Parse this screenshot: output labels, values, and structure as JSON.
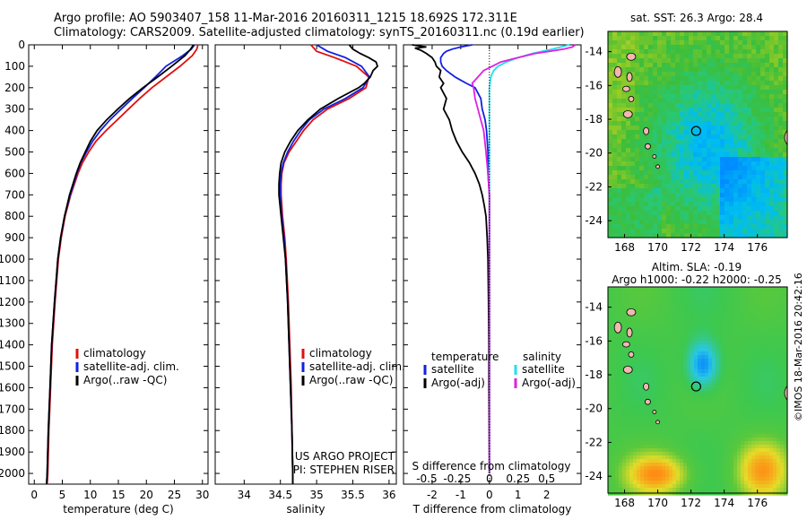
{
  "header": {
    "line1": "Argo profile: AO 5903407_158 11-Mar-2016 20160311_1215 18.692S 172.311E",
    "line2": "Climatology: CARS2009. Satellite-adjusted climatology: synTS_20160311.nc (0.19d earlier)"
  },
  "credit": "©IMOS 18-Mar-2016 20:42:16",
  "colors": {
    "climatology": "#e01010",
    "satellite": "#1020e0",
    "argo": "#000000",
    "satellite_sal": "#20e0f0",
    "argo_sal": "#e020e0",
    "land": "#f0b8b0"
  },
  "chart_data": [
    {
      "id": "temperature",
      "type": "line",
      "xlabel": "temperature (deg C)",
      "ylabel": "",
      "xlim": [
        -1,
        31
      ],
      "ylim": [
        2050,
        0
      ],
      "y_inverted": true,
      "xticks": [
        "0",
        "5",
        "10",
        "15",
        "20",
        "25",
        "30"
      ],
      "yticks": [
        "0",
        "100",
        "200",
        "300",
        "400",
        "500",
        "600",
        "700",
        "800",
        "900",
        "1000",
        "1100",
        "1200",
        "1300",
        "1400",
        "1500",
        "1600",
        "1700",
        "1800",
        "1900",
        "2000"
      ],
      "legend": [
        "climatology",
        "satellite-adj. clim.",
        "Argo(..raw -QC)"
      ],
      "series": [
        {
          "name": "climatology",
          "color": "#e01010",
          "y": [
            0,
            20,
            50,
            100,
            150,
            200,
            250,
            300,
            350,
            400,
            450,
            500,
            550,
            600,
            700,
            800,
            900,
            1000,
            1200,
            1400,
            1600,
            1800,
            2000,
            2050
          ],
          "x": [
            29.2,
            29.0,
            28.2,
            26.0,
            23.5,
            21.0,
            18.8,
            16.8,
            14.8,
            12.8,
            11.0,
            9.7,
            8.6,
            7.8,
            6.5,
            5.5,
            4.8,
            4.3,
            3.7,
            3.2,
            2.9,
            2.6,
            2.4,
            2.3
          ]
        },
        {
          "name": "satellite-adj. clim.",
          "color": "#1020e0",
          "y": [
            0,
            20,
            50,
            100,
            150,
            200,
            250,
            300,
            350,
            400,
            450,
            500,
            550,
            600,
            700,
            800,
            900,
            1000,
            1200,
            1400,
            1600,
            1800,
            2000,
            2050
          ],
          "x": [
            28.6,
            28.0,
            26.5,
            23.5,
            21.6,
            19.6,
            17.5,
            15.5,
            13.5,
            11.8,
            10.4,
            9.3,
            8.3,
            7.6,
            6.4,
            5.4,
            4.7,
            4.2,
            3.6,
            3.1,
            2.8,
            2.5,
            2.3,
            2.2
          ]
        },
        {
          "name": "Argo(..raw -QC)",
          "color": "#000000",
          "y": [
            0,
            20,
            50,
            100,
            150,
            200,
            250,
            300,
            350,
            400,
            450,
            500,
            550,
            600,
            700,
            800,
            900,
            1000,
            1200,
            1400,
            1600,
            1800,
            2000,
            2050
          ],
          "x": [
            28.4,
            27.9,
            26.9,
            24.5,
            22.0,
            19.4,
            17.0,
            14.9,
            12.9,
            11.2,
            10.0,
            9.1,
            8.2,
            7.5,
            6.3,
            5.4,
            4.7,
            4.2,
            3.6,
            3.1,
            2.8,
            2.5,
            2.3,
            2.2
          ]
        }
      ]
    },
    {
      "id": "salinity",
      "type": "line",
      "xlabel": "salinity",
      "ylabel": "",
      "xlim": [
        33.6,
        36.1
      ],
      "ylim": [
        2050,
        0
      ],
      "y_inverted": true,
      "xticks": [
        "34",
        "34.5",
        "35",
        "35.5",
        "36"
      ],
      "legend": [
        "climatology",
        "satellite-adj. clim.",
        "Argo(..raw -QC)"
      ],
      "annotation": [
        "US ARGO PROJECT",
        "PI: STEPHEN RISER"
      ],
      "series": [
        {
          "name": "climatology",
          "color": "#e01010",
          "y": [
            0,
            30,
            60,
            100,
            150,
            200,
            250,
            300,
            350,
            400,
            450,
            500,
            550,
            600,
            650,
            700,
            800,
            900,
            1000,
            1200,
            1400,
            1600,
            1800,
            2000,
            2050
          ],
          "x": [
            34.92,
            35.0,
            35.25,
            35.55,
            35.72,
            35.68,
            35.45,
            35.15,
            34.95,
            34.82,
            34.72,
            34.62,
            34.55,
            34.52,
            34.51,
            34.51,
            34.53,
            34.56,
            34.58,
            34.61,
            34.63,
            34.65,
            34.66,
            34.67,
            34.67
          ]
        },
        {
          "name": "satellite-adj. clim.",
          "color": "#1020e0",
          "y": [
            0,
            30,
            60,
            100,
            150,
            200,
            250,
            300,
            350,
            400,
            450,
            500,
            550,
            600,
            650,
            700,
            800,
            900,
            1000,
            1200,
            1400,
            1600,
            1800,
            2000,
            2050
          ],
          "x": [
            35.0,
            35.15,
            35.4,
            35.62,
            35.73,
            35.64,
            35.4,
            35.1,
            34.9,
            34.78,
            34.68,
            34.6,
            34.54,
            34.51,
            34.5,
            34.5,
            34.52,
            34.55,
            34.57,
            34.6,
            34.62,
            34.64,
            34.66,
            34.67,
            34.67
          ]
        },
        {
          "name": "Argo(..raw -QC)",
          "color": "#000000",
          "y": [
            0,
            20,
            40,
            60,
            80,
            100,
            120,
            150,
            180,
            200,
            250,
            300,
            350,
            400,
            450,
            500,
            550,
            600,
            650,
            700,
            800,
            900,
            1000,
            1200,
            1400,
            1600,
            1800,
            2000,
            2050
          ],
          "x": [
            35.45,
            35.5,
            35.6,
            35.72,
            35.82,
            35.84,
            35.78,
            35.74,
            35.66,
            35.58,
            35.3,
            35.05,
            34.88,
            34.74,
            34.64,
            34.56,
            34.51,
            34.49,
            34.48,
            34.48,
            34.51,
            34.54,
            34.57,
            34.6,
            34.62,
            34.64,
            34.66,
            34.67,
            34.67
          ]
        }
      ]
    },
    {
      "id": "difference",
      "type": "line",
      "xlabel": "T difference from climatology",
      "top_label": "S difference from climatology",
      "xlim": [
        -3,
        3.2
      ],
      "ylim": [
        2050,
        0
      ],
      "y_inverted": true,
      "xticks": [
        "-2",
        "-1",
        "0",
        "1",
        "2"
      ],
      "top_xticks": [
        "-0.5",
        "-0.25",
        "0",
        "0.25",
        "0.5"
      ],
      "legend_left": {
        "title": "temperature",
        "items": [
          "satellite",
          "Argo(-adj)"
        ]
      },
      "legend_right": {
        "title": "salinity",
        "items": [
          "satellite",
          "Argo(-adj)"
        ]
      },
      "series": [
        {
          "name": "satellite",
          "quantity": "temperature",
          "color": "#1020e0",
          "y": [
            0,
            10,
            20,
            30,
            40,
            60,
            80,
            100,
            120,
            150,
            180,
            200,
            250,
            300,
            350,
            400,
            500,
            600,
            700,
            800,
            1000,
            1200,
            1500,
            2000
          ],
          "x": [
            -0.6,
            -1.0,
            -1.3,
            -1.5,
            -1.6,
            -1.7,
            -1.7,
            -1.65,
            -1.5,
            -1.2,
            -0.8,
            -0.5,
            -0.3,
            -0.25,
            -0.15,
            -0.1,
            -0.05,
            -0.05,
            0,
            0,
            0,
            0,
            0,
            0
          ]
        },
        {
          "name": "Argo(-adj)",
          "quantity": "temperature",
          "color": "#000000",
          "y": [
            0,
            10,
            15,
            25,
            40,
            60,
            80,
            100,
            120,
            150,
            180,
            200,
            250,
            300,
            350,
            400,
            450,
            500,
            550,
            600,
            650,
            700,
            750,
            800,
            900,
            1000,
            1200,
            1400,
            1600,
            1800,
            2000
          ],
          "x": [
            -2.7,
            -2.2,
            -2.6,
            -2.4,
            -2.2,
            -2.0,
            -1.9,
            -1.85,
            -1.7,
            -1.75,
            -1.6,
            -1.7,
            -1.5,
            -1.6,
            -1.4,
            -1.3,
            -1.15,
            -0.95,
            -0.7,
            -0.5,
            -0.35,
            -0.25,
            -0.18,
            -0.12,
            -0.08,
            -0.05,
            -0.03,
            -0.02,
            -0.02,
            -0.01,
            0
          ]
        },
        {
          "name": "satellite",
          "quantity": "salinity",
          "color": "#20e0f0",
          "y": [
            0,
            20,
            40,
            60,
            80,
            100,
            120,
            150,
            200,
            250,
            300,
            400,
            500,
            600,
            800,
            1000,
            1500,
            2000
          ],
          "x": [
            2.8,
            2.2,
            1.5,
            1.0,
            0.6,
            0.3,
            0.15,
            0.05,
            0,
            0,
            0,
            0,
            0,
            0,
            0,
            0,
            0,
            0
          ]
        },
        {
          "name": "Argo(-adj)",
          "quantity": "salinity",
          "color": "#e020e0",
          "y": [
            0,
            10,
            20,
            30,
            40,
            60,
            80,
            100,
            120,
            150,
            180,
            200,
            250,
            300,
            350,
            400,
            500,
            600,
            700,
            800,
            1000,
            1200,
            1500,
            2000
          ],
          "x": [
            3.0,
            2.9,
            2.6,
            2.1,
            1.6,
            1.0,
            0.4,
            0.1,
            -0.2,
            -0.4,
            -0.6,
            -0.55,
            -0.5,
            -0.4,
            -0.3,
            -0.2,
            -0.12,
            -0.05,
            0,
            0,
            0,
            0,
            0,
            0
          ]
        }
      ]
    },
    {
      "id": "sst_map",
      "type": "heatmap",
      "title": "sat. SST: 26.3 Argo: 28.4",
      "xlim": [
        167,
        177.8
      ],
      "ylim": [
        -25,
        -12.8
      ],
      "xticks": [
        "168",
        "170",
        "172",
        "174",
        "176"
      ],
      "yticks": [
        "-14",
        "-16",
        "-18",
        "-20",
        "-22",
        "-24"
      ],
      "argo_position": {
        "lon": 172.311,
        "lat": -18.692
      }
    },
    {
      "id": "sla_map",
      "type": "heatmap",
      "title_line1": "Altim. SLA: -0.19",
      "title_line2": "Argo h1000: -0.22 h2000: -0.25",
      "xlim": [
        167,
        177.8
      ],
      "ylim": [
        -25,
        -12.8
      ],
      "xticks": [
        "168",
        "170",
        "172",
        "174",
        "176"
      ],
      "yticks": [
        "-14",
        "-16",
        "-18",
        "-20",
        "-22",
        "-24"
      ],
      "argo_position": {
        "lon": 172.311,
        "lat": -18.692
      }
    }
  ]
}
